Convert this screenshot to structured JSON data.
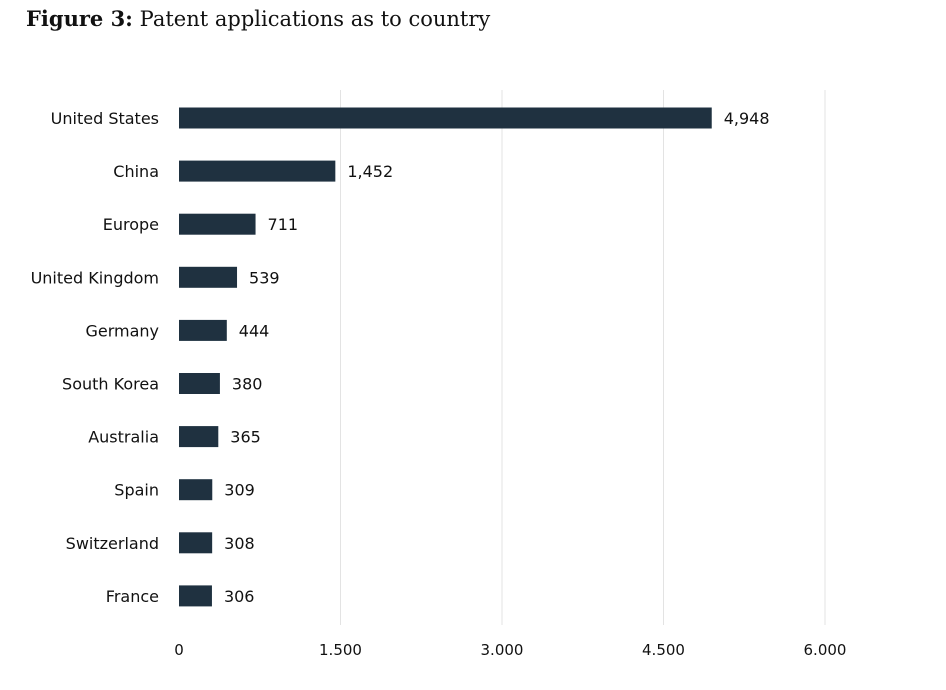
{
  "figure": {
    "label": "Figure 3:",
    "caption": "Patent applications as to country"
  },
  "chart_data": {
    "type": "bar",
    "orientation": "horizontal",
    "title": "",
    "xlabel": "",
    "ylabel": "",
    "categories": [
      "United States",
      "China",
      "Europe",
      "United Kingdom",
      "Germany",
      "South Korea",
      "Australia",
      "Spain",
      "Switzerland",
      "France"
    ],
    "values": [
      4948,
      1452,
      711,
      539,
      444,
      380,
      365,
      309,
      308,
      306
    ],
    "value_labels": [
      "4,948",
      "1,452",
      "711",
      "539",
      "444",
      "380",
      "365",
      "309",
      "308",
      "306"
    ],
    "xlim": [
      0,
      6000
    ],
    "xticks": [
      0,
      1500,
      3000,
      4500,
      6000
    ],
    "xtick_labels": [
      "0",
      "1.500",
      "3.000",
      "4.500",
      "6.000"
    ],
    "grid": "vertical",
    "legend": "none",
    "colors": {
      "bar": "#1f3140",
      "grid": "#e3e3e3",
      "text": "#111111"
    }
  }
}
